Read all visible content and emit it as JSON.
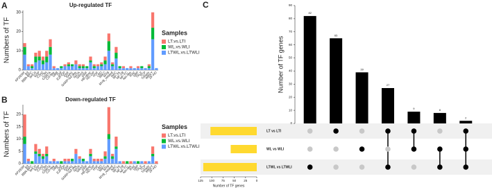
{
  "chart_data": [
    {
      "type": "stacked_bar",
      "panel_label": "A",
      "title": "Up-regulated TF",
      "ylabel": "Numbers of TF",
      "categories": [
        "AP2/ERF",
        "B3",
        "BBR-BPC",
        "bHLH",
        "bZIP",
        "C2H2",
        "C3H",
        "CAMTA",
        "CO-like",
        "DBB",
        "Dof",
        "E2F/DP",
        "ERF",
        "FAR1",
        "GARP-G2-like",
        "GATA",
        "GRAS",
        "GRF",
        "HB-other",
        "HD-ZIP",
        "HSF",
        "LBD",
        "MIKC",
        "MYB",
        "MYB_related",
        "NAC",
        "NF-YA",
        "NF-YB",
        "NF-YC",
        "Nin-like",
        "RAV",
        "SBP",
        "TALE",
        "TCP",
        "Trihelix",
        "WRKY",
        "ZF-HD"
      ],
      "series": [
        {
          "name": "LT.vs.LTI",
          "color": "#F8766D",
          "values": [
            2,
            1,
            1,
            2,
            3,
            2,
            3,
            4,
            1,
            0,
            0,
            1,
            1,
            0,
            2,
            1,
            1,
            0,
            2,
            1,
            1,
            1,
            2,
            4,
            1,
            3,
            0,
            1,
            0,
            1,
            0,
            1,
            0,
            0,
            1,
            8,
            0
          ]
        },
        {
          "name": "WL.vs.WLI",
          "color": "#00BA38",
          "values": [
            4,
            0,
            1,
            3,
            2,
            2,
            3,
            4,
            0,
            0,
            1,
            0,
            1,
            1,
            0,
            1,
            1,
            1,
            1,
            1,
            0,
            1,
            2,
            5,
            1,
            3,
            1,
            0,
            0,
            0,
            0,
            0,
            1,
            0,
            1,
            6,
            0
          ]
        },
        {
          "name": "LTWL.vs.LTWLI",
          "color": "#619CFF",
          "values": [
            8,
            2,
            1,
            4,
            5,
            3,
            4,
            8,
            1,
            1,
            1,
            2,
            2,
            2,
            3,
            1,
            1,
            1,
            4,
            1,
            2,
            2,
            3,
            10,
            2,
            6,
            1,
            1,
            1,
            1,
            1,
            1,
            1,
            1,
            1,
            16,
            1
          ]
        }
      ],
      "ylim": [
        0,
        31
      ],
      "yticks": [
        0,
        10,
        20,
        30
      ],
      "legend_title": "Samples",
      "legend": "right"
    },
    {
      "type": "stacked_bar",
      "panel_label": "B",
      "title": "Down-regulated TF",
      "ylabel": "Numbers of TF",
      "categories": [
        "AP2/ERF",
        "B3",
        "BBR-BPC",
        "bHLH",
        "bZIP",
        "C2H2",
        "C3H",
        "CAMTA",
        "CO-like",
        "DBB",
        "Dof",
        "E2F/DP",
        "ERF",
        "FAR1",
        "GARP-G2-like",
        "GATA",
        "GRAS",
        "GRF",
        "HB-other",
        "HD-ZIP",
        "HSF",
        "LBD",
        "MIKC",
        "MYB",
        "MYB_related",
        "NAC",
        "NF-YA",
        "NF-YB",
        "NF-YC",
        "Nin-like",
        "RAV",
        "SBP",
        "TALE",
        "TCP",
        "Trihelix",
        "WRKY",
        "ZF-HD"
      ],
      "series": [
        {
          "name": "LT.vs.LTI",
          "color": "#F8766D",
          "values": [
            9,
            1,
            0,
            3,
            2,
            1,
            3,
            0,
            1,
            0,
            0,
            1,
            1,
            0,
            2,
            1,
            0,
            0,
            2,
            1,
            1,
            1,
            2,
            11,
            1,
            4,
            0,
            1,
            0,
            1,
            0,
            0,
            0,
            1,
            0,
            3,
            1
          ]
        },
        {
          "name": "WL.vs.WLI",
          "color": "#00BA38",
          "values": [
            3,
            0,
            1,
            1,
            1,
            1,
            1,
            0,
            0,
            0,
            1,
            0,
            0,
            1,
            0,
            0,
            1,
            0,
            1,
            0,
            0,
            0,
            1,
            2,
            1,
            1,
            0,
            0,
            1,
            0,
            0,
            1,
            0,
            0,
            0,
            1,
            0
          ]
        },
        {
          "name": "LTWL.vs.LTWLI",
          "color": "#619CFF",
          "values": [
            8,
            1,
            0,
            4,
            3,
            2,
            3,
            1,
            1,
            1,
            0,
            1,
            1,
            1,
            4,
            2,
            1,
            1,
            3,
            1,
            1,
            1,
            2,
            10,
            2,
            6,
            1,
            0,
            0,
            0,
            1,
            0,
            1,
            0,
            1,
            3,
            0
          ]
        }
      ],
      "ylim": [
        0,
        24
      ],
      "yticks": [
        0,
        5,
        10,
        15,
        20
      ],
      "legend_title": "Samples",
      "legend": "right"
    },
    {
      "type": "upset",
      "panel_label": "C",
      "ylabel": "Number of TF genes",
      "values": [
        82,
        65,
        39,
        27,
        9,
        8,
        2
      ],
      "ylim": [
        0,
        90
      ],
      "yticks": [
        0,
        10,
        20,
        30,
        40,
        50,
        60,
        70,
        80,
        90
      ],
      "bar_color": "#000000",
      "sets": [
        "LT vs LTI",
        "WL vs WLI",
        "LTWL vs LTWLI"
      ],
      "set_sizes": [
        103,
        58,
        119
      ],
      "set_color": "#FFD92F",
      "set_sizes_xlabel": "Number of TF genes",
      "set_sizes_xlim": [
        125,
        0
      ],
      "set_sizes_xticks": [
        125,
        100,
        75,
        50,
        25,
        0
      ],
      "membership": [
        [
          false,
          true,
          false,
          true,
          true,
          false,
          true
        ],
        [
          false,
          false,
          true,
          false,
          true,
          true,
          true
        ],
        [
          true,
          false,
          false,
          true,
          false,
          true,
          true
        ]
      ]
    }
  ]
}
